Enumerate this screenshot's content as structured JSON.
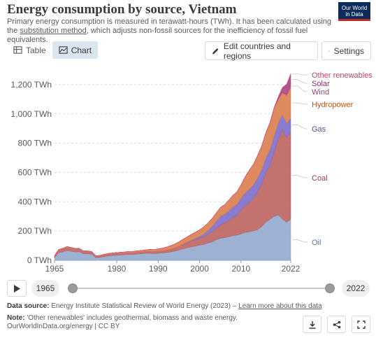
{
  "header": {
    "title": "Energy consumption by source, Vietnam",
    "subtitle_part1": "Primary energy consumption is measured in terawatt-hours (TWh). It has been calculated using the",
    "subtitle_link": "substitution method",
    "subtitle_part2": ", which adjusts non-fossil sources for the inefficiency of fossil fuel equivalents.",
    "logo_line1": "Our World",
    "logo_line2": "in Data"
  },
  "tabs": [
    {
      "label": "Table",
      "icon": "table-icon",
      "active": false
    },
    {
      "label": "Chart",
      "icon": "chart-icon",
      "active": true
    }
  ],
  "buttons": {
    "edit_label": "Edit countries and regions",
    "settings_label": "Settings"
  },
  "timeline": {
    "start_year": "1965",
    "end_year": "2022"
  },
  "footer": {
    "source_label": "Data source:",
    "source_text": "Energy Institute Statistical Review of World Energy (2023) – ",
    "source_link": "Learn more about this data",
    "note_label": "Note:",
    "note_text": "'Other renewables' includes geothermal, biomass and waste energy.",
    "credit": "OurWorldInData.org/energy | CC BY"
  },
  "colors": {
    "oil": "#8fa6ce",
    "coal": "#b95f5b",
    "gas": "#7b69c7",
    "hydropower": "#d97a49",
    "wind": "#c3508c",
    "solar": "#a53f7e",
    "other_renewables": "#d94a7b",
    "label_oil": "#5a76aa",
    "label_gas": "#5848a0",
    "label_coal": "#a23b39",
    "label_hydro": "#b55a24",
    "label_wind": "#a53d72",
    "label_solar": "#8e2d63",
    "label_other": "#d13a66"
  },
  "chart_data": {
    "type": "area",
    "stacked": true,
    "unit": "TWh",
    "x": [
      1965,
      1966,
      1967,
      1968,
      1969,
      1970,
      1971,
      1972,
      1973,
      1974,
      1975,
      1976,
      1977,
      1978,
      1979,
      1980,
      1981,
      1982,
      1983,
      1984,
      1985,
      1986,
      1987,
      1988,
      1989,
      1990,
      1991,
      1992,
      1993,
      1994,
      1995,
      1996,
      1997,
      1998,
      1999,
      2000,
      2001,
      2002,
      2003,
      2004,
      2005,
      2006,
      2007,
      2008,
      2009,
      2010,
      2011,
      2012,
      2013,
      2014,
      2015,
      2016,
      2017,
      2018,
      2019,
      2020,
      2021,
      2022
    ],
    "xticks": [
      "1965",
      "1980",
      "1990",
      "2000",
      "2010",
      "2022"
    ],
    "yticks": [
      "0 TWh",
      "200 TWh",
      "400 TWh",
      "600 TWh",
      "800 TWh",
      "1,000 TWh",
      "1,200 TWh"
    ],
    "ylim": [
      0,
      1300
    ],
    "series": [
      {
        "name": "Oil",
        "color_key": "oil",
        "values": [
          17,
          52,
          58,
          67,
          62,
          57,
          58,
          45,
          45,
          42,
          17,
          20,
          26,
          30,
          33,
          35,
          36,
          38,
          40,
          40,
          43,
          45,
          48,
          48,
          46,
          48,
          50,
          52,
          57,
          63,
          70,
          78,
          85,
          92,
          97,
          103,
          108,
          118,
          125,
          140,
          150,
          155,
          160,
          168,
          172,
          180,
          190,
          195,
          200,
          210,
          230,
          260,
          280,
          300,
          310,
          280,
          260,
          280
        ]
      },
      {
        "name": "Coal",
        "color_key": "coal",
        "values": [
          11,
          16,
          18,
          20,
          19,
          18,
          18,
          14,
          14,
          13,
          8,
          8,
          9,
          10,
          10,
          11,
          11,
          11,
          12,
          12,
          12,
          12,
          13,
          14,
          14,
          15,
          16,
          18,
          20,
          22,
          25,
          30,
          35,
          40,
          45,
          48,
          52,
          60,
          70,
          80,
          90,
          100,
          110,
          125,
          135,
          165,
          185,
          200,
          220,
          260,
          290,
          340,
          370,
          440,
          520,
          610,
          580,
          600
        ]
      },
      {
        "name": "Gas",
        "color_key": "gas",
        "values": [
          0,
          0,
          0,
          0,
          0,
          0,
          0,
          0,
          0,
          0,
          0,
          0,
          0,
          0,
          0,
          0,
          0,
          0,
          0,
          0,
          0,
          0,
          0,
          0,
          0,
          0,
          0,
          0,
          0,
          0,
          1,
          2,
          3,
          5,
          8,
          12,
          18,
          25,
          35,
          45,
          60,
          60,
          65,
          70,
          75,
          80,
          85,
          90,
          95,
          95,
          100,
          100,
          105,
          110,
          110,
          105,
          95,
          90
        ]
      },
      {
        "name": "Hydropower",
        "color_key": "hydropower",
        "values": [
          5,
          6,
          6,
          7,
          7,
          6,
          6,
          5,
          5,
          5,
          5,
          6,
          6,
          7,
          7,
          7,
          8,
          8,
          9,
          9,
          10,
          10,
          11,
          12,
          13,
          15,
          17,
          20,
          23,
          26,
          30,
          34,
          37,
          40,
          42,
          45,
          50,
          52,
          55,
          58,
          60,
          65,
          75,
          80,
          85,
          90,
          110,
          130,
          140,
          150,
          160,
          170,
          185,
          190,
          160,
          150,
          190,
          210
        ]
      },
      {
        "name": "Wind",
        "color_key": "wind",
        "values": [
          0,
          0,
          0,
          0,
          0,
          0,
          0,
          0,
          0,
          0,
          0,
          0,
          0,
          0,
          0,
          0,
          0,
          0,
          0,
          0,
          0,
          0,
          0,
          0,
          0,
          0,
          0,
          0,
          0,
          0,
          0,
          0,
          0,
          0,
          0,
          0,
          0,
          0,
          0,
          0,
          0,
          0,
          0,
          0,
          0,
          0,
          0,
          0,
          0,
          0,
          0,
          0,
          0,
          1,
          2,
          3,
          8,
          20
        ]
      },
      {
        "name": "Solar",
        "color_key": "solar",
        "values": [
          0,
          0,
          0,
          0,
          0,
          0,
          0,
          0,
          0,
          0,
          0,
          0,
          0,
          0,
          0,
          0,
          0,
          0,
          0,
          0,
          0,
          0,
          0,
          0,
          0,
          0,
          0,
          0,
          0,
          0,
          0,
          0,
          0,
          0,
          0,
          0,
          0,
          0,
          0,
          0,
          0,
          0,
          0,
          0,
          0,
          0,
          0,
          0,
          0,
          0,
          0,
          0,
          0,
          1,
          12,
          30,
          65,
          70
        ]
      },
      {
        "name": "Other renewables",
        "color_key": "other_renewables",
        "values": [
          0,
          0,
          0,
          0,
          0,
          0,
          0,
          0,
          0,
          0,
          0,
          0,
          0,
          0,
          0,
          0,
          0,
          0,
          0,
          0,
          0,
          0,
          0,
          0,
          0,
          0,
          0,
          0,
          0,
          0,
          0,
          0,
          0,
          0,
          0,
          0,
          0,
          0,
          0,
          0,
          0,
          0,
          0,
          0,
          1,
          1,
          1,
          2,
          2,
          2,
          2,
          3,
          3,
          3,
          4,
          4,
          5,
          5
        ]
      }
    ],
    "legend_placement": "right, inline labels",
    "grid": true
  }
}
